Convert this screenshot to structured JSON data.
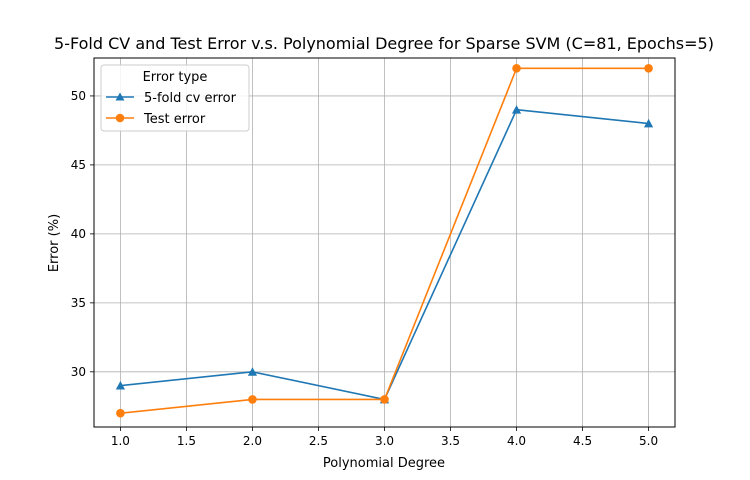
{
  "chart_data": {
    "type": "line",
    "title": "5-Fold CV and Test Error v.s. Polynomial Degree for Sparse SVM (C=81, Epochs=5)",
    "xlabel": "Polynomial Degree",
    "ylabel": "Error (%)",
    "x": [
      1.0,
      2.0,
      3.0,
      4.0,
      5.0
    ],
    "xlim": [
      0.8,
      5.2
    ],
    "ylim": [
      26.0,
      52.75
    ],
    "xticks": [
      1.0,
      1.5,
      2.0,
      2.5,
      3.0,
      3.5,
      4.0,
      4.5,
      5.0
    ],
    "xtick_labels": [
      "1.0",
      "1.5",
      "2.0",
      "2.5",
      "3.0",
      "3.5",
      "4.0",
      "4.5",
      "5.0"
    ],
    "yticks": [
      30,
      35,
      40,
      45,
      50
    ],
    "ytick_labels": [
      "30",
      "35",
      "40",
      "45",
      "50"
    ],
    "grid": true,
    "legend": {
      "title": "Error type",
      "position": "top-left"
    },
    "series": [
      {
        "name": "5-fold cv error",
        "values": [
          29,
          30,
          28,
          49,
          48
        ],
        "color": "#1f77b4",
        "marker": "triangle"
      },
      {
        "name": "Test error",
        "values": [
          27,
          28,
          28,
          52,
          52
        ],
        "color": "#ff7f0e",
        "marker": "circle"
      }
    ]
  }
}
